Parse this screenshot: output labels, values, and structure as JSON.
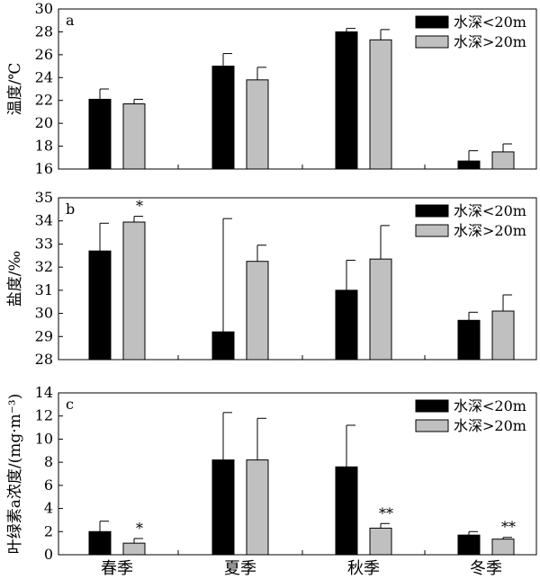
{
  "chart_data": [
    {
      "type": "bar",
      "panel_label": "a",
      "ylabel": "温度/℃",
      "ylim": [
        16,
        30
      ],
      "yticks": [
        16,
        18,
        20,
        22,
        24,
        26,
        28,
        30
      ],
      "categories": [
        "春季",
        "夏季",
        "秋季",
        "冬季"
      ],
      "legend_position": "top-right",
      "series": [
        {
          "name": "水深<20m",
          "color": "#000000",
          "values": [
            22.1,
            25.0,
            28.0,
            16.7
          ],
          "errors": [
            0.9,
            1.1,
            0.3,
            0.9
          ]
        },
        {
          "name": "水深>20m",
          "color": "#c0c0c0",
          "values": [
            21.7,
            23.8,
            27.3,
            17.5
          ],
          "errors": [
            0.4,
            1.1,
            0.9,
            0.7
          ]
        }
      ],
      "annotations": []
    },
    {
      "type": "bar",
      "panel_label": "b",
      "ylabel": "盐度/‰",
      "ylim": [
        28,
        35
      ],
      "yticks": [
        28,
        29,
        30,
        31,
        32,
        33,
        34,
        35
      ],
      "categories": [
        "春季",
        "夏季",
        "秋季",
        "冬季"
      ],
      "legend_position": "top-right",
      "series": [
        {
          "name": "水深<20m",
          "color": "#000000",
          "values": [
            32.7,
            29.2,
            31.0,
            29.7
          ],
          "errors": [
            1.2,
            4.9,
            1.3,
            0.35
          ]
        },
        {
          "name": "水深>20m",
          "color": "#c0c0c0",
          "values": [
            33.95,
            32.25,
            32.35,
            30.1
          ],
          "errors": [
            0.25,
            0.7,
            1.45,
            0.7
          ]
        }
      ],
      "annotations": [
        {
          "category": 0,
          "series": 1,
          "text": "*"
        }
      ]
    },
    {
      "type": "bar",
      "panel_label": "c",
      "ylabel": "叶绿素a浓度/(mg·m⁻³)",
      "ylim": [
        0,
        14
      ],
      "yticks": [
        0,
        2,
        4,
        6,
        8,
        10,
        12,
        14
      ],
      "categories": [
        "春季",
        "夏季",
        "秋季",
        "冬季"
      ],
      "legend_position": "top-right",
      "series": [
        {
          "name": "水深<20m",
          "color": "#000000",
          "values": [
            2.0,
            8.2,
            7.6,
            1.7
          ],
          "errors": [
            0.9,
            4.1,
            3.6,
            0.3
          ]
        },
        {
          "name": "水深>20m",
          "color": "#c0c0c0",
          "values": [
            1.0,
            8.2,
            2.3,
            1.35
          ],
          "errors": [
            0.4,
            3.6,
            0.4,
            0.15
          ]
        }
      ],
      "annotations": [
        {
          "category": 0,
          "series": 1,
          "text": "*"
        },
        {
          "category": 2,
          "series": 1,
          "text": "**"
        },
        {
          "category": 3,
          "series": 1,
          "text": "**"
        }
      ]
    }
  ]
}
